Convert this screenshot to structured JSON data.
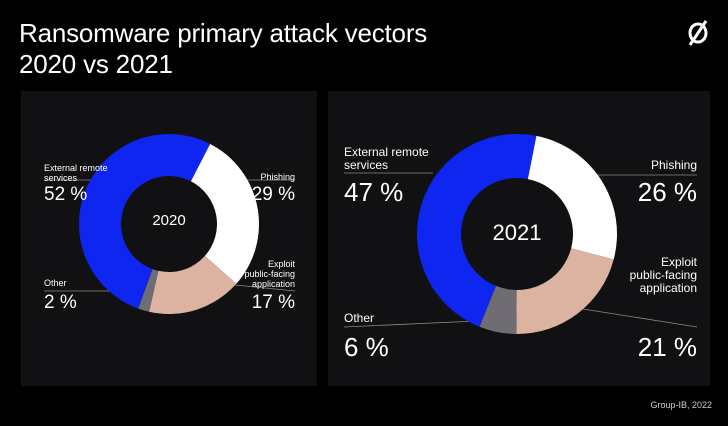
{
  "title": {
    "line1": "Ransomware primary attack vectors",
    "line2": "2020 vs 2021"
  },
  "logo_icon": "null-slash-logo-icon",
  "source": "Group-IB, 2022",
  "colors": {
    "background": "#000000",
    "panel": "#111113",
    "external_remote_services": "#0f25f0",
    "phishing": "#ffffff",
    "exploit_public_facing_application": "#dcb3a1",
    "other": "#6f6c74"
  },
  "chart_data": [
    {
      "type": "pie",
      "variant": "donut",
      "center_label": "2020",
      "slices": [
        {
          "label": "External remote services",
          "value": 52,
          "value_label": "52 %"
        },
        {
          "label": "Phishing",
          "value": 29,
          "value_label": "29 %"
        },
        {
          "label": "Exploit public-facing application",
          "value": 17,
          "value_label": "17 %"
        },
        {
          "label": "Other",
          "value": 2,
          "value_label": "2 %"
        }
      ]
    },
    {
      "type": "pie",
      "variant": "donut",
      "center_label": "2021",
      "slices": [
        {
          "label": "External remote services",
          "value": 47,
          "value_label": "47 %"
        },
        {
          "label": "Phishing",
          "value": 26,
          "value_label": "26 %"
        },
        {
          "label": "Exploit public-facing application",
          "value": 21,
          "value_label": "21 %"
        },
        {
          "label": "Other",
          "value": 6,
          "value_label": "6 %"
        }
      ]
    }
  ],
  "labels": {
    "external_line1": "External remote",
    "external_line2": "services",
    "phishing": "Phishing",
    "exploit_line1": "Exploit",
    "exploit_line2": "public-facing",
    "exploit_line3": "application",
    "other": "Other"
  }
}
